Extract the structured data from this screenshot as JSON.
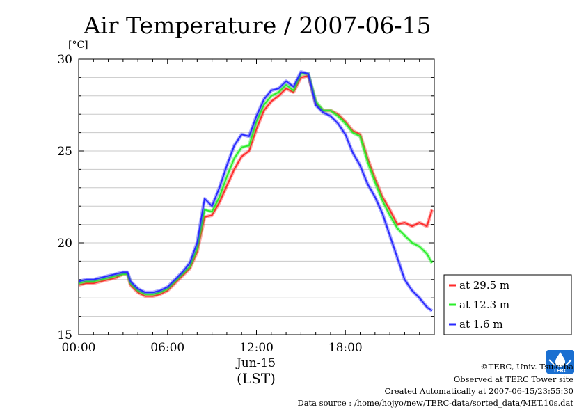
{
  "chart_data": {
    "type": "line",
    "title": "Air Temperature / 2007-06-15",
    "yunit": "[°C]",
    "xlabel_date": "Jun-15",
    "xlabel_tz": "(LST)",
    "x_ticks": [
      "00:00",
      "06:00",
      "12:00",
      "18:00"
    ],
    "y_ticks": [
      "15",
      "20",
      "25",
      "30"
    ],
    "xlim_hours": [
      0,
      24
    ],
    "ylim": [
      15,
      30
    ],
    "grid": true,
    "legend_position": "right",
    "series": [
      {
        "name": "at 29.5 m",
        "color": "#ff2a2a",
        "points": [
          [
            0.0,
            17.7
          ],
          [
            0.5,
            17.8
          ],
          [
            1.0,
            17.8
          ],
          [
            1.5,
            17.9
          ],
          [
            2.0,
            18.0
          ],
          [
            2.5,
            18.1
          ],
          [
            3.0,
            18.3
          ],
          [
            3.3,
            18.3
          ],
          [
            3.5,
            17.7
          ],
          [
            4.0,
            17.3
          ],
          [
            4.5,
            17.1
          ],
          [
            5.0,
            17.1
          ],
          [
            5.5,
            17.2
          ],
          [
            6.0,
            17.4
          ],
          [
            6.5,
            17.8
          ],
          [
            7.0,
            18.2
          ],
          [
            7.5,
            18.6
          ],
          [
            8.0,
            19.5
          ],
          [
            8.5,
            21.4
          ],
          [
            9.0,
            21.5
          ],
          [
            9.5,
            22.2
          ],
          [
            10.0,
            23.1
          ],
          [
            10.5,
            24.0
          ],
          [
            11.0,
            24.7
          ],
          [
            11.5,
            25.0
          ],
          [
            12.0,
            26.2
          ],
          [
            12.5,
            27.2
          ],
          [
            13.0,
            27.7
          ],
          [
            13.5,
            28.0
          ],
          [
            14.0,
            28.4
          ],
          [
            14.5,
            28.2
          ],
          [
            15.0,
            29.0
          ],
          [
            15.5,
            29.1
          ],
          [
            16.0,
            27.6
          ],
          [
            16.5,
            27.2
          ],
          [
            17.0,
            27.2
          ],
          [
            17.5,
            27.0
          ],
          [
            18.0,
            26.6
          ],
          [
            18.5,
            26.1
          ],
          [
            19.0,
            25.9
          ],
          [
            19.5,
            24.6
          ],
          [
            20.0,
            23.5
          ],
          [
            20.5,
            22.5
          ],
          [
            21.0,
            21.8
          ],
          [
            21.5,
            21.0
          ],
          [
            22.0,
            21.1
          ],
          [
            22.5,
            20.9
          ],
          [
            23.0,
            21.1
          ],
          [
            23.5,
            20.9
          ],
          [
            23.85,
            21.8
          ]
        ]
      },
      {
        "name": "at 12.3 m",
        "color": "#2aee2a",
        "points": [
          [
            0.0,
            17.8
          ],
          [
            0.5,
            17.9
          ],
          [
            1.0,
            17.9
          ],
          [
            1.5,
            18.0
          ],
          [
            2.0,
            18.1
          ],
          [
            2.5,
            18.2
          ],
          [
            3.0,
            18.3
          ],
          [
            3.3,
            18.3
          ],
          [
            3.5,
            17.8
          ],
          [
            4.0,
            17.4
          ],
          [
            4.5,
            17.2
          ],
          [
            5.0,
            17.2
          ],
          [
            5.5,
            17.3
          ],
          [
            6.0,
            17.5
          ],
          [
            6.5,
            17.9
          ],
          [
            7.0,
            18.3
          ],
          [
            7.5,
            18.7
          ],
          [
            8.0,
            19.7
          ],
          [
            8.5,
            21.8
          ],
          [
            9.0,
            21.7
          ],
          [
            9.5,
            22.5
          ],
          [
            10.0,
            23.6
          ],
          [
            10.5,
            24.6
          ],
          [
            11.0,
            25.2
          ],
          [
            11.5,
            25.3
          ],
          [
            12.0,
            26.6
          ],
          [
            12.5,
            27.5
          ],
          [
            13.0,
            28.0
          ],
          [
            13.5,
            28.2
          ],
          [
            14.0,
            28.6
          ],
          [
            14.5,
            28.3
          ],
          [
            15.0,
            29.2
          ],
          [
            15.5,
            29.2
          ],
          [
            16.0,
            27.7
          ],
          [
            16.5,
            27.2
          ],
          [
            17.0,
            27.2
          ],
          [
            17.5,
            26.9
          ],
          [
            18.0,
            26.5
          ],
          [
            18.5,
            26.0
          ],
          [
            19.0,
            25.8
          ],
          [
            19.5,
            24.4
          ],
          [
            20.0,
            23.3
          ],
          [
            20.5,
            22.3
          ],
          [
            21.0,
            21.5
          ],
          [
            21.5,
            20.8
          ],
          [
            22.0,
            20.4
          ],
          [
            22.5,
            20.0
          ],
          [
            23.0,
            19.8
          ],
          [
            23.5,
            19.4
          ],
          [
            23.85,
            18.9
          ]
        ]
      },
      {
        "name": "at 1.6 m",
        "color": "#2a2aff",
        "points": [
          [
            0.0,
            17.9
          ],
          [
            0.5,
            18.0
          ],
          [
            1.0,
            18.0
          ],
          [
            1.5,
            18.1
          ],
          [
            2.0,
            18.2
          ],
          [
            2.5,
            18.3
          ],
          [
            3.0,
            18.4
          ],
          [
            3.3,
            18.4
          ],
          [
            3.5,
            17.9
          ],
          [
            4.0,
            17.5
          ],
          [
            4.5,
            17.3
          ],
          [
            5.0,
            17.3
          ],
          [
            5.5,
            17.4
          ],
          [
            6.0,
            17.6
          ],
          [
            6.5,
            18.0
          ],
          [
            7.0,
            18.4
          ],
          [
            7.5,
            18.9
          ],
          [
            8.0,
            20.0
          ],
          [
            8.5,
            22.4
          ],
          [
            9.0,
            22.0
          ],
          [
            9.5,
            23.0
          ],
          [
            10.0,
            24.2
          ],
          [
            10.5,
            25.3
          ],
          [
            11.0,
            25.9
          ],
          [
            11.5,
            25.8
          ],
          [
            12.0,
            26.9
          ],
          [
            12.5,
            27.8
          ],
          [
            13.0,
            28.3
          ],
          [
            13.5,
            28.4
          ],
          [
            14.0,
            28.8
          ],
          [
            14.5,
            28.5
          ],
          [
            15.0,
            29.3
          ],
          [
            15.5,
            29.2
          ],
          [
            16.0,
            27.5
          ],
          [
            16.5,
            27.1
          ],
          [
            17.0,
            26.9
          ],
          [
            17.5,
            26.5
          ],
          [
            18.0,
            25.9
          ],
          [
            18.5,
            24.9
          ],
          [
            19.0,
            24.2
          ],
          [
            19.5,
            23.2
          ],
          [
            20.0,
            22.5
          ],
          [
            20.5,
            21.6
          ],
          [
            21.0,
            20.4
          ],
          [
            21.5,
            19.2
          ],
          [
            22.0,
            18.0
          ],
          [
            22.5,
            17.4
          ],
          [
            23.0,
            17.0
          ],
          [
            23.5,
            16.5
          ],
          [
            23.85,
            16.3
          ]
        ]
      }
    ]
  },
  "footer": {
    "copyright": "©TERC, Univ. Tsukuba",
    "observed": "Observed at TERC Tower site",
    "created": "Created Automatically at 2007-06-15/23:55:30",
    "source": "Data source : /home/hojyo/new/TERC-data/sorted_data/MET.10s.dat"
  },
  "logo": {
    "text": "TERC",
    "color": "#1a6fd1"
  }
}
